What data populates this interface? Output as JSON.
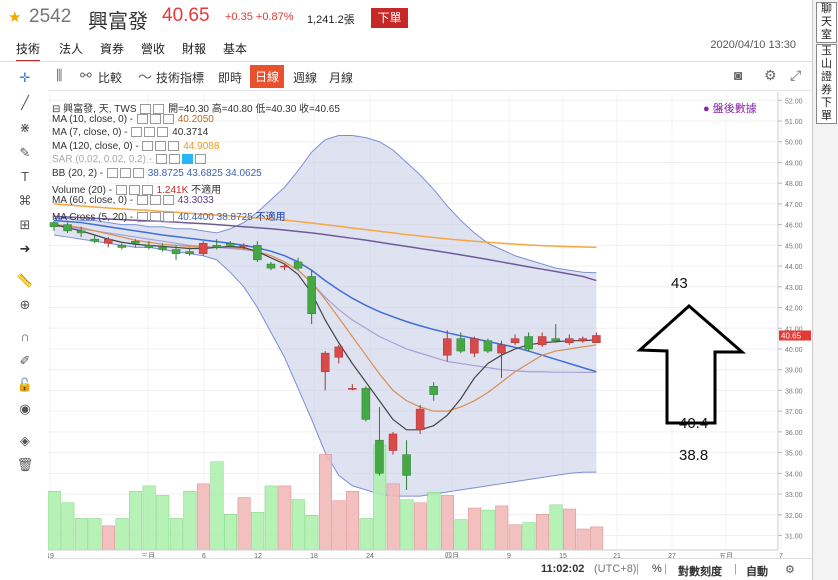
{
  "header": {
    "code": "2542",
    "name": "興富發",
    "price": "40.65",
    "change": "+0.35 +0.87%",
    "volume": "1,241.2張",
    "order_label": "下單"
  },
  "tabs": [
    {
      "label": "技術"
    },
    {
      "label": "法人"
    },
    {
      "label": "資券"
    },
    {
      "label": "營收"
    },
    {
      "label": "財報"
    },
    {
      "label": "基本"
    }
  ],
  "datetime": "2020/04/10 13:30",
  "side_tabs": [
    {
      "label": "聊天室"
    },
    {
      "label": "玉山證券下單"
    }
  ],
  "chart_toolbar": {
    "compare": "比較",
    "indicators": "技術指標",
    "realtime": "即時",
    "daily": "日線",
    "weekly": "週線",
    "monthly": "月線"
  },
  "legend": {
    "main": "興富發, 天, TWS",
    "open": "開=40.30",
    "high": "高=40.80",
    "low": "低=40.30",
    "close": "收=40.65",
    "ma10": "MA (10, close, 0)",
    "ma10_v": "40.2050",
    "ma7": "MA (7, close, 0)",
    "ma7_v": "40.3714",
    "ma120": "MA (120, close, 0)",
    "ma120_v": "44.9088",
    "sar": "SAR (0.02, 0.02, 0.2)",
    "bb": "BB (20, 2)",
    "bb_v": "38.8725  43.6825  34.0625",
    "vol": "Volume (20)",
    "vol_v": "1.241K",
    "vol_na": "不適用",
    "ma60": "MA (60, close, 0)",
    "ma60_v": "43.3033",
    "macross": "MA Cross (5, 20)",
    "macross_v": "40.4400  38.8725",
    "macross_na": "不適用"
  },
  "post_market": "盤後數據",
  "annotations": {
    "a1": "43",
    "a2": "40.4",
    "a3": "38.8"
  },
  "status": {
    "time": "11:02:02",
    "tz": "(UTC+8)",
    "pct": "%",
    "scale": "對數刻度",
    "auto": "自動"
  },
  "chart_data": {
    "type": "candlestick",
    "y_ticks": [
      "52.00",
      "51.00",
      "50.00",
      "49.00",
      "48.00",
      "47.00",
      "46.00",
      "45.00",
      "44.00",
      "43.00",
      "42.00",
      "41.00",
      "40.00",
      "39.00",
      "38.00",
      "37.00",
      "36.00",
      "35.00",
      "34.00",
      "33.00",
      "32.00",
      "31.00"
    ],
    "last_price_label": "40.65",
    "x_ticks": [
      "19",
      "三月",
      "6",
      "12",
      "18",
      "24",
      "四月",
      "9",
      "15",
      "21",
      "27",
      "五月",
      "7"
    ],
    "ylim": [
      30.3,
      52.4
    ],
    "candles": [
      {
        "o": 46.1,
        "h": 46.2,
        "l": 45.7,
        "c": 45.9
      },
      {
        "o": 46.0,
        "h": 46.1,
        "l": 45.6,
        "c": 45.7
      },
      {
        "o": 45.7,
        "h": 45.9,
        "l": 45.4,
        "c": 45.6
      },
      {
        "o": 45.3,
        "h": 45.5,
        "l": 45.1,
        "c": 45.2
      },
      {
        "o": 45.1,
        "h": 45.4,
        "l": 44.9,
        "c": 45.3
      },
      {
        "o": 45.0,
        "h": 45.1,
        "l": 44.8,
        "c": 44.9
      },
      {
        "o": 45.2,
        "h": 45.3,
        "l": 44.9,
        "c": 45.1
      },
      {
        "o": 45.0,
        "h": 45.2,
        "l": 44.8,
        "c": 44.9
      },
      {
        "o": 44.9,
        "h": 45.1,
        "l": 44.7,
        "c": 44.8
      },
      {
        "o": 44.8,
        "h": 45.0,
        "l": 44.3,
        "c": 44.6
      },
      {
        "o": 44.7,
        "h": 44.9,
        "l": 44.5,
        "c": 44.6
      },
      {
        "o": 44.6,
        "h": 45.2,
        "l": 44.5,
        "c": 45.1
      },
      {
        "o": 45.0,
        "h": 45.3,
        "l": 44.8,
        "c": 44.9
      },
      {
        "o": 45.1,
        "h": 45.2,
        "l": 44.9,
        "c": 45.0
      },
      {
        "o": 45.0,
        "h": 45.1,
        "l": 44.8,
        "c": 45.0
      },
      {
        "o": 45.0,
        "h": 45.2,
        "l": 44.2,
        "c": 44.3
      },
      {
        "o": 44.1,
        "h": 44.2,
        "l": 43.8,
        "c": 43.9
      },
      {
        "o": 44.0,
        "h": 44.1,
        "l": 43.8,
        "c": 44.0
      },
      {
        "o": 44.2,
        "h": 44.4,
        "l": 43.8,
        "c": 43.9
      },
      {
        "o": 43.5,
        "h": 43.8,
        "l": 41.2,
        "c": 41.7
      },
      {
        "o": 38.9,
        "h": 39.9,
        "l": 38.0,
        "c": 39.8
      },
      {
        "o": 39.6,
        "h": 40.2,
        "l": 39.3,
        "c": 40.1
      },
      {
        "o": 38.1,
        "h": 38.3,
        "l": 38.0,
        "c": 38.1
      },
      {
        "o": 38.1,
        "h": 38.2,
        "l": 36.5,
        "c": 36.6
      },
      {
        "o": 35.6,
        "h": 37.2,
        "l": 33.9,
        "c": 34.0
      },
      {
        "o": 35.1,
        "h": 36.0,
        "l": 34.9,
        "c": 35.9
      },
      {
        "o": 34.9,
        "h": 35.6,
        "l": 33.2,
        "c": 33.9
      },
      {
        "o": 36.1,
        "h": 37.3,
        "l": 35.9,
        "c": 37.1
      },
      {
        "o": 38.2,
        "h": 38.4,
        "l": 37.5,
        "c": 37.8
      },
      {
        "o": 39.7,
        "h": 40.9,
        "l": 39.4,
        "c": 40.5
      },
      {
        "o": 40.5,
        "h": 40.8,
        "l": 39.8,
        "c": 39.9
      },
      {
        "o": 39.8,
        "h": 40.6,
        "l": 39.6,
        "c": 40.5
      },
      {
        "o": 40.4,
        "h": 40.5,
        "l": 39.8,
        "c": 39.9
      },
      {
        "o": 39.8,
        "h": 40.4,
        "l": 38.6,
        "c": 40.2
      },
      {
        "o": 40.3,
        "h": 40.7,
        "l": 40.2,
        "c": 40.5
      },
      {
        "o": 40.6,
        "h": 40.8,
        "l": 39.9,
        "c": 40.0
      },
      {
        "o": 40.2,
        "h": 40.8,
        "l": 40.1,
        "c": 40.6
      },
      {
        "o": 40.5,
        "h": 41.2,
        "l": 40.3,
        "c": 40.4
      },
      {
        "o": 40.3,
        "h": 40.7,
        "l": 40.2,
        "c": 40.5
      },
      {
        "o": 40.4,
        "h": 40.6,
        "l": 40.3,
        "c": 40.5
      },
      {
        "o": 40.3,
        "h": 40.8,
        "l": 40.3,
        "c": 40.65
      }
    ],
    "volume": [
      0.56,
      0.45,
      0.3,
      0.3,
      0.23,
      0.3,
      0.56,
      0.61,
      0.52,
      0.3,
      0.56,
      0.63,
      0.84,
      0.34,
      0.5,
      0.36,
      0.61,
      0.61,
      0.48,
      0.33,
      0.91,
      0.47,
      0.56,
      0.3,
      1.0,
      0.63,
      0.48,
      0.45,
      0.55,
      0.52,
      0.29,
      0.4,
      0.38,
      0.42,
      0.24,
      0.26,
      0.34,
      0.43,
      0.39,
      0.2,
      0.22
    ],
    "ma_short": [
      46.0,
      45.85,
      45.7,
      45.5,
      45.3,
      45.15,
      45.05,
      45.0,
      44.95,
      44.9,
      44.85,
      44.85,
      44.9,
      44.95,
      44.9,
      44.7,
      44.4,
      44.1,
      43.6,
      42.7,
      41.4,
      40.3,
      39.3,
      38.4,
      37.5,
      36.6,
      36.1,
      36.1,
      36.3,
      36.8,
      37.6,
      38.6,
      39.3,
      39.7,
      40.0,
      40.2,
      40.3,
      40.35,
      40.4,
      40.4,
      40.44
    ],
    "ma10_line": [
      46.0,
      45.95,
      45.85,
      45.7,
      45.55,
      45.4,
      45.25,
      45.15,
      45.05,
      45.0,
      44.95,
      44.9,
      44.9,
      44.9,
      44.85,
      44.7,
      44.5,
      44.2,
      43.8,
      43.2,
      42.4,
      41.5,
      40.6,
      39.7,
      38.8,
      38.0,
      37.5,
      37.2,
      37.0,
      37.0,
      37.2,
      37.5,
      37.9,
      38.4,
      38.9,
      39.3,
      39.7,
      39.9,
      40.0,
      40.1,
      40.2
    ],
    "bb_mid": [
      46.0,
      45.9,
      45.8,
      45.7,
      45.6,
      45.5,
      45.4,
      45.3,
      45.2,
      45.1,
      45.0,
      44.95,
      44.9,
      44.85,
      44.8,
      44.7,
      44.5,
      44.2,
      43.8,
      43.2,
      42.5,
      41.9,
      41.4,
      41.0,
      40.6,
      40.3,
      40.0,
      39.8,
      39.6,
      39.4,
      39.3,
      39.2,
      39.1,
      39.0,
      38.95,
      38.9,
      38.9,
      38.88,
      38.88,
      38.87,
      38.87
    ],
    "bb_upper": [
      46.3,
      46.3,
      46.2,
      46.2,
      46.1,
      46.0,
      46.0,
      45.9,
      45.9,
      45.8,
      45.8,
      45.7,
      45.6,
      45.8,
      46.1,
      46.6,
      47.2,
      47.8,
      48.6,
      49.5,
      50.1,
      50.3,
      50.3,
      50.2,
      50.0,
      49.6,
      49.0,
      48.4,
      47.7,
      46.9,
      46.2,
      45.6,
      45.1,
      44.8,
      44.5,
      44.3,
      44.1,
      43.9,
      43.8,
      43.7,
      43.68
    ],
    "bb_lower": [
      45.5,
      45.4,
      45.3,
      45.2,
      45.1,
      45.0,
      44.9,
      44.9,
      44.8,
      44.7,
      44.6,
      44.5,
      44.3,
      43.7,
      43.0,
      42.0,
      40.8,
      39.6,
      38.1,
      36.6,
      35.0,
      33.9,
      33.4,
      33.2,
      33.0,
      32.9,
      32.9,
      32.9,
      33.0,
      33.1,
      33.2,
      33.3,
      33.4,
      33.5,
      33.6,
      33.7,
      33.8,
      33.9,
      34.0,
      34.05,
      34.06
    ],
    "ma60_line": [
      46.4,
      46.37,
      46.34,
      46.3,
      46.27,
      46.24,
      46.21,
      46.18,
      46.15,
      46.12,
      46.08,
      46.05,
      46.0,
      45.95,
      45.9,
      45.85,
      45.8,
      45.74,
      45.67,
      45.6,
      45.52,
      45.43,
      45.34,
      45.25,
      45.15,
      45.05,
      44.95,
      44.85,
      44.75,
      44.65,
      44.54,
      44.43,
      44.32,
      44.2,
      44.08,
      43.96,
      43.85,
      43.74,
      43.62,
      43.5,
      43.3
    ],
    "ma120_line": [
      47.0,
      46.95,
      46.9,
      46.85,
      46.8,
      46.76,
      46.72,
      46.68,
      46.64,
      46.6,
      46.55,
      46.5,
      46.46,
      46.42,
      46.37,
      46.32,
      46.27,
      46.22,
      46.15,
      46.08,
      46.0,
      45.92,
      45.84,
      45.76,
      45.68,
      45.6,
      45.52,
      45.45,
      45.38,
      45.31,
      45.25,
      45.2,
      45.15,
      45.1,
      45.06,
      45.02,
      44.99,
      44.96,
      44.94,
      44.92,
      44.91
    ],
    "ma_blue": [
      46.2,
      46.15,
      46.1,
      46.0,
      45.9,
      45.8,
      45.7,
      45.6,
      45.5,
      45.42,
      45.34,
      45.26,
      45.18,
      45.1,
      45.0,
      44.88,
      44.72,
      44.5,
      44.2,
      43.8,
      43.3,
      42.85,
      42.45,
      42.1,
      41.8,
      41.55,
      41.32,
      41.12,
      40.94,
      40.78,
      40.64,
      40.5,
      40.36,
      40.22,
      40.08,
      39.9,
      39.7,
      39.5,
      39.3,
      39.1,
      38.9
    ]
  }
}
